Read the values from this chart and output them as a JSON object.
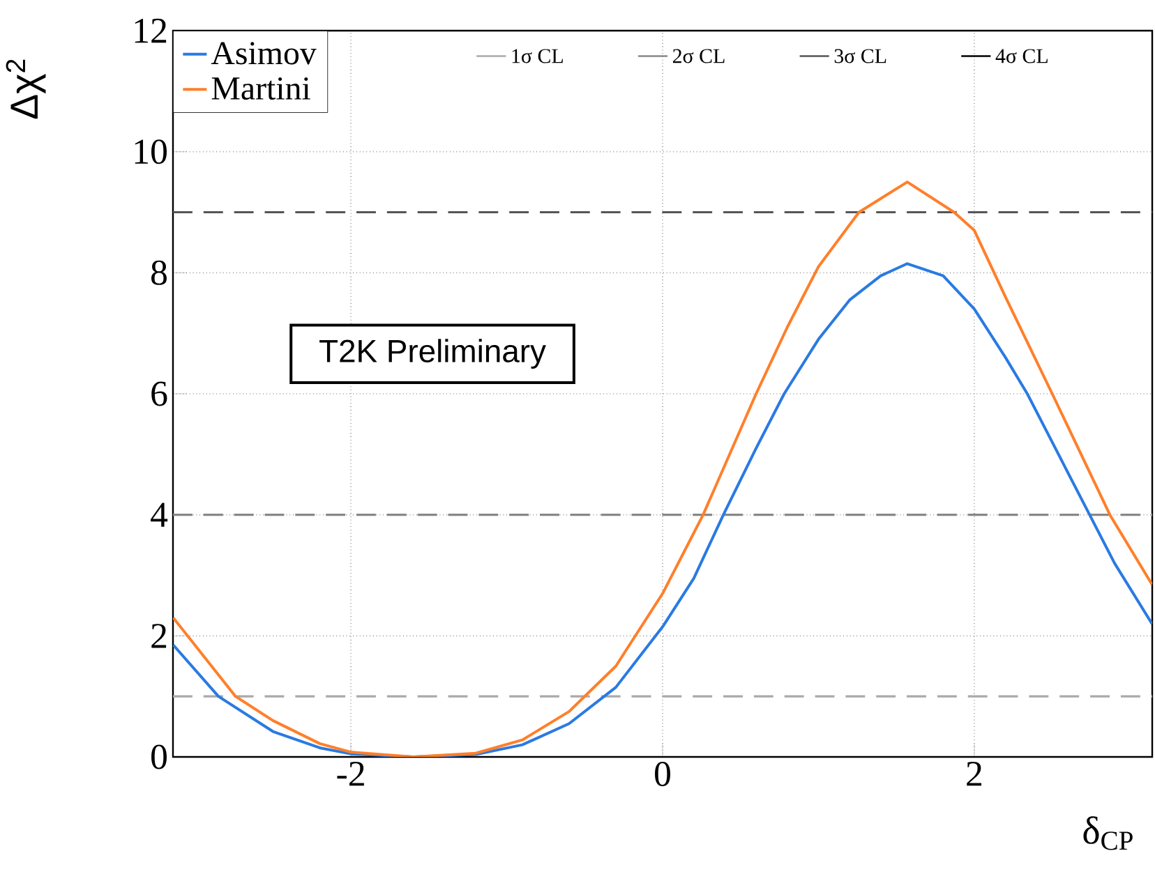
{
  "chart_data": {
    "type": "line",
    "xlabel": "δ$_{CP}$",
    "ylabel": "Δχ$^{2}$",
    "xlim": [
      -3.1416,
      3.1416
    ],
    "ylim": [
      0,
      12
    ],
    "xticks": [
      -2,
      0,
      2
    ],
    "yticks": [
      0,
      2,
      4,
      6,
      8,
      10,
      12
    ],
    "grid": true,
    "legend": "top left",
    "line_style": "solid",
    "marker": "none",
    "series": [
      {
        "name": "Asimov",
        "color": "#2a7ae2",
        "x": [
          -3.14,
          -2.85,
          -2.5,
          -2.2,
          -2.0,
          -1.6,
          -1.2,
          -0.9,
          -0.6,
          -0.3,
          0,
          0.2,
          0.39,
          0.6,
          0.78,
          1.0,
          1.2,
          1.4,
          1.57,
          1.8,
          2.0,
          2.2,
          2.34,
          2.5,
          2.74,
          2.9,
          3.14
        ],
        "values": [
          1.85,
          1.0,
          0.42,
          0.15,
          0.05,
          0,
          0.04,
          0.2,
          0.55,
          1.15,
          2.15,
          2.95,
          4.0,
          5.1,
          6.0,
          6.9,
          7.55,
          7.95,
          8.15,
          7.95,
          7.4,
          6.6,
          6.0,
          5.2,
          4.0,
          3.2,
          2.2
        ]
      },
      {
        "name": "Martini",
        "color": "#ff7f2a",
        "x": [
          -3.14,
          -2.74,
          -2.5,
          -2.2,
          -2.0,
          -1.6,
          -1.2,
          -0.9,
          -0.6,
          -0.3,
          0,
          0.26,
          0.6,
          0.8,
          1.0,
          1.26,
          1.57,
          1.87,
          2.0,
          2.2,
          2.5,
          2.87,
          3.14
        ],
        "values": [
          2.3,
          1.0,
          0.6,
          0.22,
          0.08,
          0,
          0.06,
          0.28,
          0.75,
          1.5,
          2.7,
          4.0,
          6.0,
          7.1,
          8.1,
          9.0,
          9.5,
          9.0,
          8.7,
          7.6,
          6.0,
          4.0,
          2.85
        ]
      }
    ],
    "ref_lines": [
      {
        "axis": "y",
        "value": 1,
        "label": "1σ CL",
        "color": "#aaaaaa",
        "line_style": "dashed"
      },
      {
        "axis": "y",
        "value": 4,
        "label": "2σ CL",
        "color": "#888888",
        "line_style": "dashed"
      },
      {
        "axis": "y",
        "value": 9,
        "label": "3σ CL",
        "color": "#555555",
        "line_style": "dashed"
      }
    ],
    "annotations": [
      "T2K Preliminary",
      "4σ CL"
    ]
  }
}
